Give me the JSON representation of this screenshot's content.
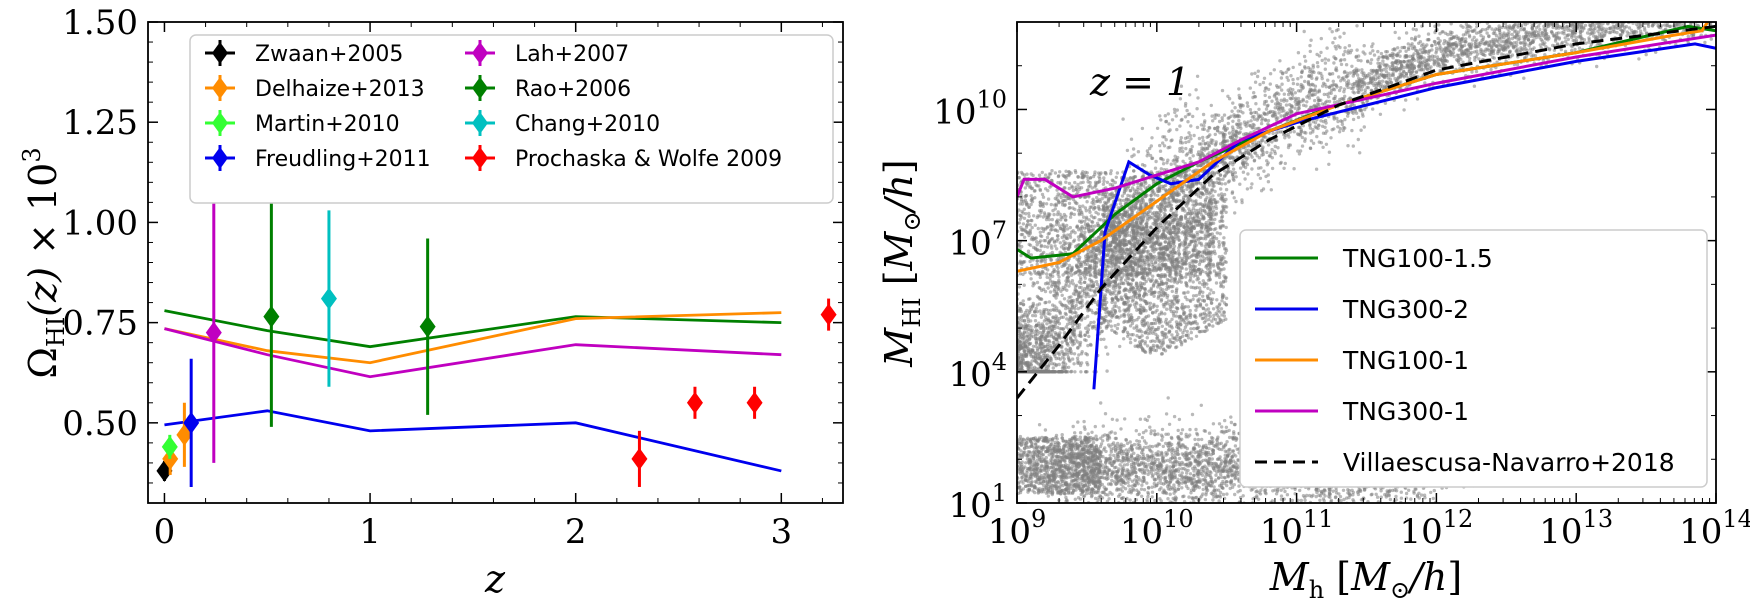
{
  "chart_data": [
    {
      "type": "line",
      "title": "",
      "xlabel": "z",
      "ylabel": "Ω_HI(z) × 10^3",
      "xlim": [
        -0.08,
        3.3
      ],
      "ylim": [
        0.3,
        1.5
      ],
      "xticks": [
        0,
        1,
        2,
        3
      ],
      "xtick_labels": [
        "0",
        "1",
        "2",
        "3"
      ],
      "yticks": [
        0.5,
        0.75,
        1.0,
        1.25,
        1.5
      ],
      "ytick_labels": [
        "0.50",
        "0.75",
        "1.00",
        "1.25",
        "1.50"
      ],
      "legend_position": "top",
      "series": [
        {
          "name": "TNG100-1.5",
          "color": "#008000",
          "x": [
            0,
            0.5,
            1,
            2,
            3
          ],
          "y": [
            0.78,
            0.73,
            0.69,
            0.765,
            0.75
          ]
        },
        {
          "name": "TNG100-1",
          "color": "#ff8c00",
          "x": [
            0,
            0.5,
            1,
            2,
            3
          ],
          "y": [
            0.735,
            0.68,
            0.65,
            0.76,
            0.775
          ]
        },
        {
          "name": "TNG300-1",
          "color": "#c000c0",
          "x": [
            0,
            0.5,
            1,
            2,
            3
          ],
          "y": [
            0.735,
            0.67,
            0.615,
            0.695,
            0.67
          ]
        },
        {
          "name": "TNG300-2",
          "color": "#0000ee",
          "x": [
            0,
            0.5,
            1,
            2,
            3
          ],
          "y": [
            0.495,
            0.53,
            0.48,
            0.5,
            0.38
          ]
        }
      ],
      "observations": [
        {
          "name": "Zwaan+2005",
          "color": "#000000",
          "points": [
            {
              "x": 0.0,
              "y": 0.38,
              "lo": 0.355,
              "hi": 0.405
            }
          ]
        },
        {
          "name": "Delhaize+2013",
          "color": "#ff8c00",
          "points": [
            {
              "x": 0.028,
              "y": 0.41,
              "lo": 0.37,
              "hi": 0.45
            },
            {
              "x": 0.097,
              "y": 0.47,
              "lo": 0.39,
              "hi": 0.55
            }
          ]
        },
        {
          "name": "Martin+2010",
          "color": "#33ff33",
          "points": [
            {
              "x": 0.026,
              "y": 0.44,
              "lo": 0.41,
              "hi": 0.47
            }
          ]
        },
        {
          "name": "Freudling+2011",
          "color": "#0000ee",
          "points": [
            {
              "x": 0.13,
              "y": 0.5,
              "lo": 0.34,
              "hi": 0.66
            }
          ]
        },
        {
          "name": "Lah+2007",
          "color": "#c000c0",
          "points": [
            {
              "x": 0.24,
              "y": 0.725,
              "lo": 0.4,
              "hi": 1.05
            }
          ]
        },
        {
          "name": "Rao+2006",
          "color": "#008000",
          "points": [
            {
              "x": 0.52,
              "y": 0.765,
              "lo": 0.49,
              "hi": 1.05
            },
            {
              "x": 1.28,
              "y": 0.74,
              "lo": 0.52,
              "hi": 0.96
            }
          ]
        },
        {
          "name": "Chang+2010",
          "color": "#00c0c0",
          "points": [
            {
              "x": 0.8,
              "y": 0.81,
              "lo": 0.59,
              "hi": 1.03
            }
          ]
        },
        {
          "name": "Prochaska & Wolfe 2009",
          "color": "#ff0000",
          "points": [
            {
              "x": 2.31,
              "y": 0.41,
              "lo": 0.34,
              "hi": 0.48
            },
            {
              "x": 2.58,
              "y": 0.55,
              "lo": 0.51,
              "hi": 0.59
            },
            {
              "x": 2.87,
              "y": 0.55,
              "lo": 0.51,
              "hi": 0.59
            },
            {
              "x": 3.23,
              "y": 0.77,
              "lo": 0.73,
              "hi": 0.81
            }
          ]
        }
      ]
    },
    {
      "type": "scatter",
      "title": "",
      "annotation": "z = 1",
      "xlabel": "M_h [M_⊙/h]",
      "ylabel": "M_HI [M_⊙/h]",
      "xscale": "log",
      "yscale": "log",
      "xlim": [
        1000000000.0,
        100000000000000.0
      ],
      "ylim": [
        10,
        1000000000000.0
      ],
      "xtick_exponents": [
        9,
        10,
        11,
        12,
        13,
        14
      ],
      "ytick_exponents": [
        1,
        4,
        7,
        10
      ],
      "legend_position": "lower right",
      "scatter_color": "#808080",
      "series": [
        {
          "name": "TNG100-1.5",
          "color": "#008000",
          "style": "solid",
          "log_x": [
            9.0,
            9.1,
            9.4,
            9.7,
            10.0,
            10.3,
            10.8,
            11.2,
            12.0,
            13.0,
            13.8,
            14.0
          ],
          "log_y": [
            6.8,
            6.6,
            6.7,
            7.6,
            8.3,
            8.8,
            9.5,
            10.0,
            10.8,
            11.3,
            11.9,
            11.8
          ]
        },
        {
          "name": "TNG300-2",
          "color": "#0000ee",
          "style": "solid",
          "log_x": [
            9.55,
            9.63,
            9.8,
            9.95,
            10.1,
            10.3,
            10.6,
            11.0,
            12.0,
            13.0,
            13.85,
            14.0
          ],
          "log_y": [
            3.6,
            7.2,
            8.8,
            8.5,
            8.3,
            8.4,
            9.3,
            9.7,
            10.5,
            11.1,
            11.5,
            11.4
          ]
        },
        {
          "name": "TNG100-1",
          "color": "#ff8c00",
          "style": "solid",
          "log_x": [
            9.0,
            9.3,
            9.6,
            10.0,
            10.4,
            10.8,
            11.3,
            12.0,
            13.0,
            13.7,
            13.9,
            14.0
          ],
          "log_y": [
            6.3,
            6.5,
            7.0,
            7.9,
            8.8,
            9.5,
            10.1,
            10.8,
            11.3,
            11.7,
            11.8,
            12.3
          ]
        },
        {
          "name": "TNG300-1",
          "color": "#c000c0",
          "style": "solid",
          "log_x": [
            9.0,
            9.05,
            9.2,
            9.4,
            9.7,
            10.0,
            10.3,
            10.6,
            11.0,
            12.0,
            13.0,
            14.0
          ],
          "log_y": [
            8.0,
            8.4,
            8.4,
            8.0,
            8.2,
            8.5,
            8.8,
            9.3,
            9.9,
            10.6,
            11.2,
            11.7
          ]
        },
        {
          "name": "Villaescusa-Navarro+2018",
          "color": "#000000",
          "style": "dashed",
          "log_x": [
            9.0,
            9.3,
            9.6,
            10.0,
            10.4,
            10.8,
            11.3,
            12.0,
            13.0,
            14.0
          ],
          "log_y": [
            3.4,
            4.6,
            5.9,
            7.3,
            8.5,
            9.3,
            10.1,
            10.9,
            11.5,
            11.9
          ]
        }
      ]
    }
  ]
}
